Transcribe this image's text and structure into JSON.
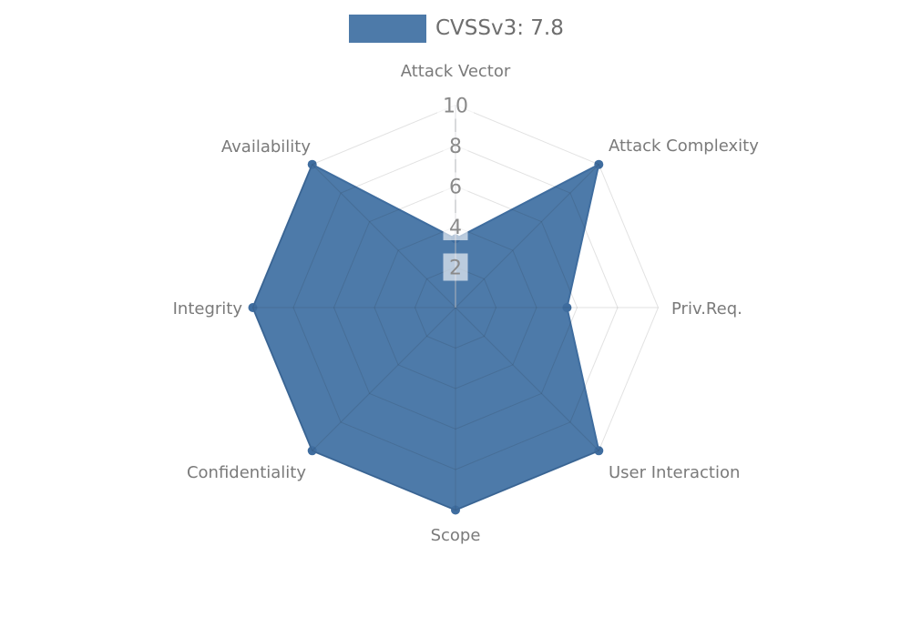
{
  "chart_data": {
    "type": "radar",
    "title": "",
    "legend": {
      "label": "CVSSv3: 7.8",
      "position": "top-center"
    },
    "axes": [
      "Attack Vector",
      "Attack Complexity",
      "Priv.Req.",
      "User Interaction",
      "Scope",
      "Confidentiality",
      "Integrity",
      "Availability"
    ],
    "series": [
      {
        "name": "CVSSv3: 7.8",
        "values": [
          3.4,
          10,
          5.5,
          10,
          10,
          10,
          10,
          10
        ]
      }
    ],
    "ticks": [
      2,
      4,
      6,
      8,
      10
    ],
    "range": [
      0,
      10
    ],
    "grid": "polygon-web",
    "grid_on_top_of_fill": true,
    "colors": {
      "fill": "#4d7aa9",
      "line": "#3f6d9f",
      "grid": "rgba(30,30,30,0.13)",
      "axis_line": "#b0b4ba",
      "tick_text": "#8a8a8a",
      "tick_box": "rgba(255,255,255,0.62)",
      "label_text": "#7a7a7a",
      "legend_text": "#6e6e6e"
    }
  }
}
